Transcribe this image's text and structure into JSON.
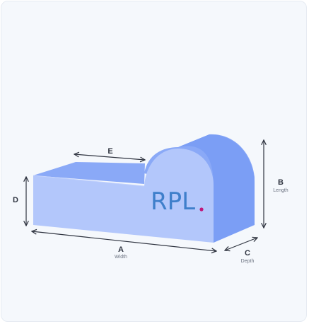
{
  "colors": {
    "card_background": "#f5f8fc",
    "shape_front": "#b3c7fb",
    "shape_top": "#8aa9f7",
    "shape_side": "#7b9ef5",
    "dimension_line": "#2f3440",
    "logo_text": "#3f7fcb",
    "logo_dot": "#c0187a"
  },
  "logo": {
    "text": "RPL",
    "dot": "."
  },
  "dimensions": {
    "a": {
      "letter": "A",
      "name": "Width"
    },
    "b": {
      "letter": "B",
      "name": "Length"
    },
    "c": {
      "letter": "C",
      "name": "Depth"
    },
    "d": {
      "letter": "D",
      "name": ""
    },
    "e": {
      "letter": "E",
      "name": ""
    }
  }
}
